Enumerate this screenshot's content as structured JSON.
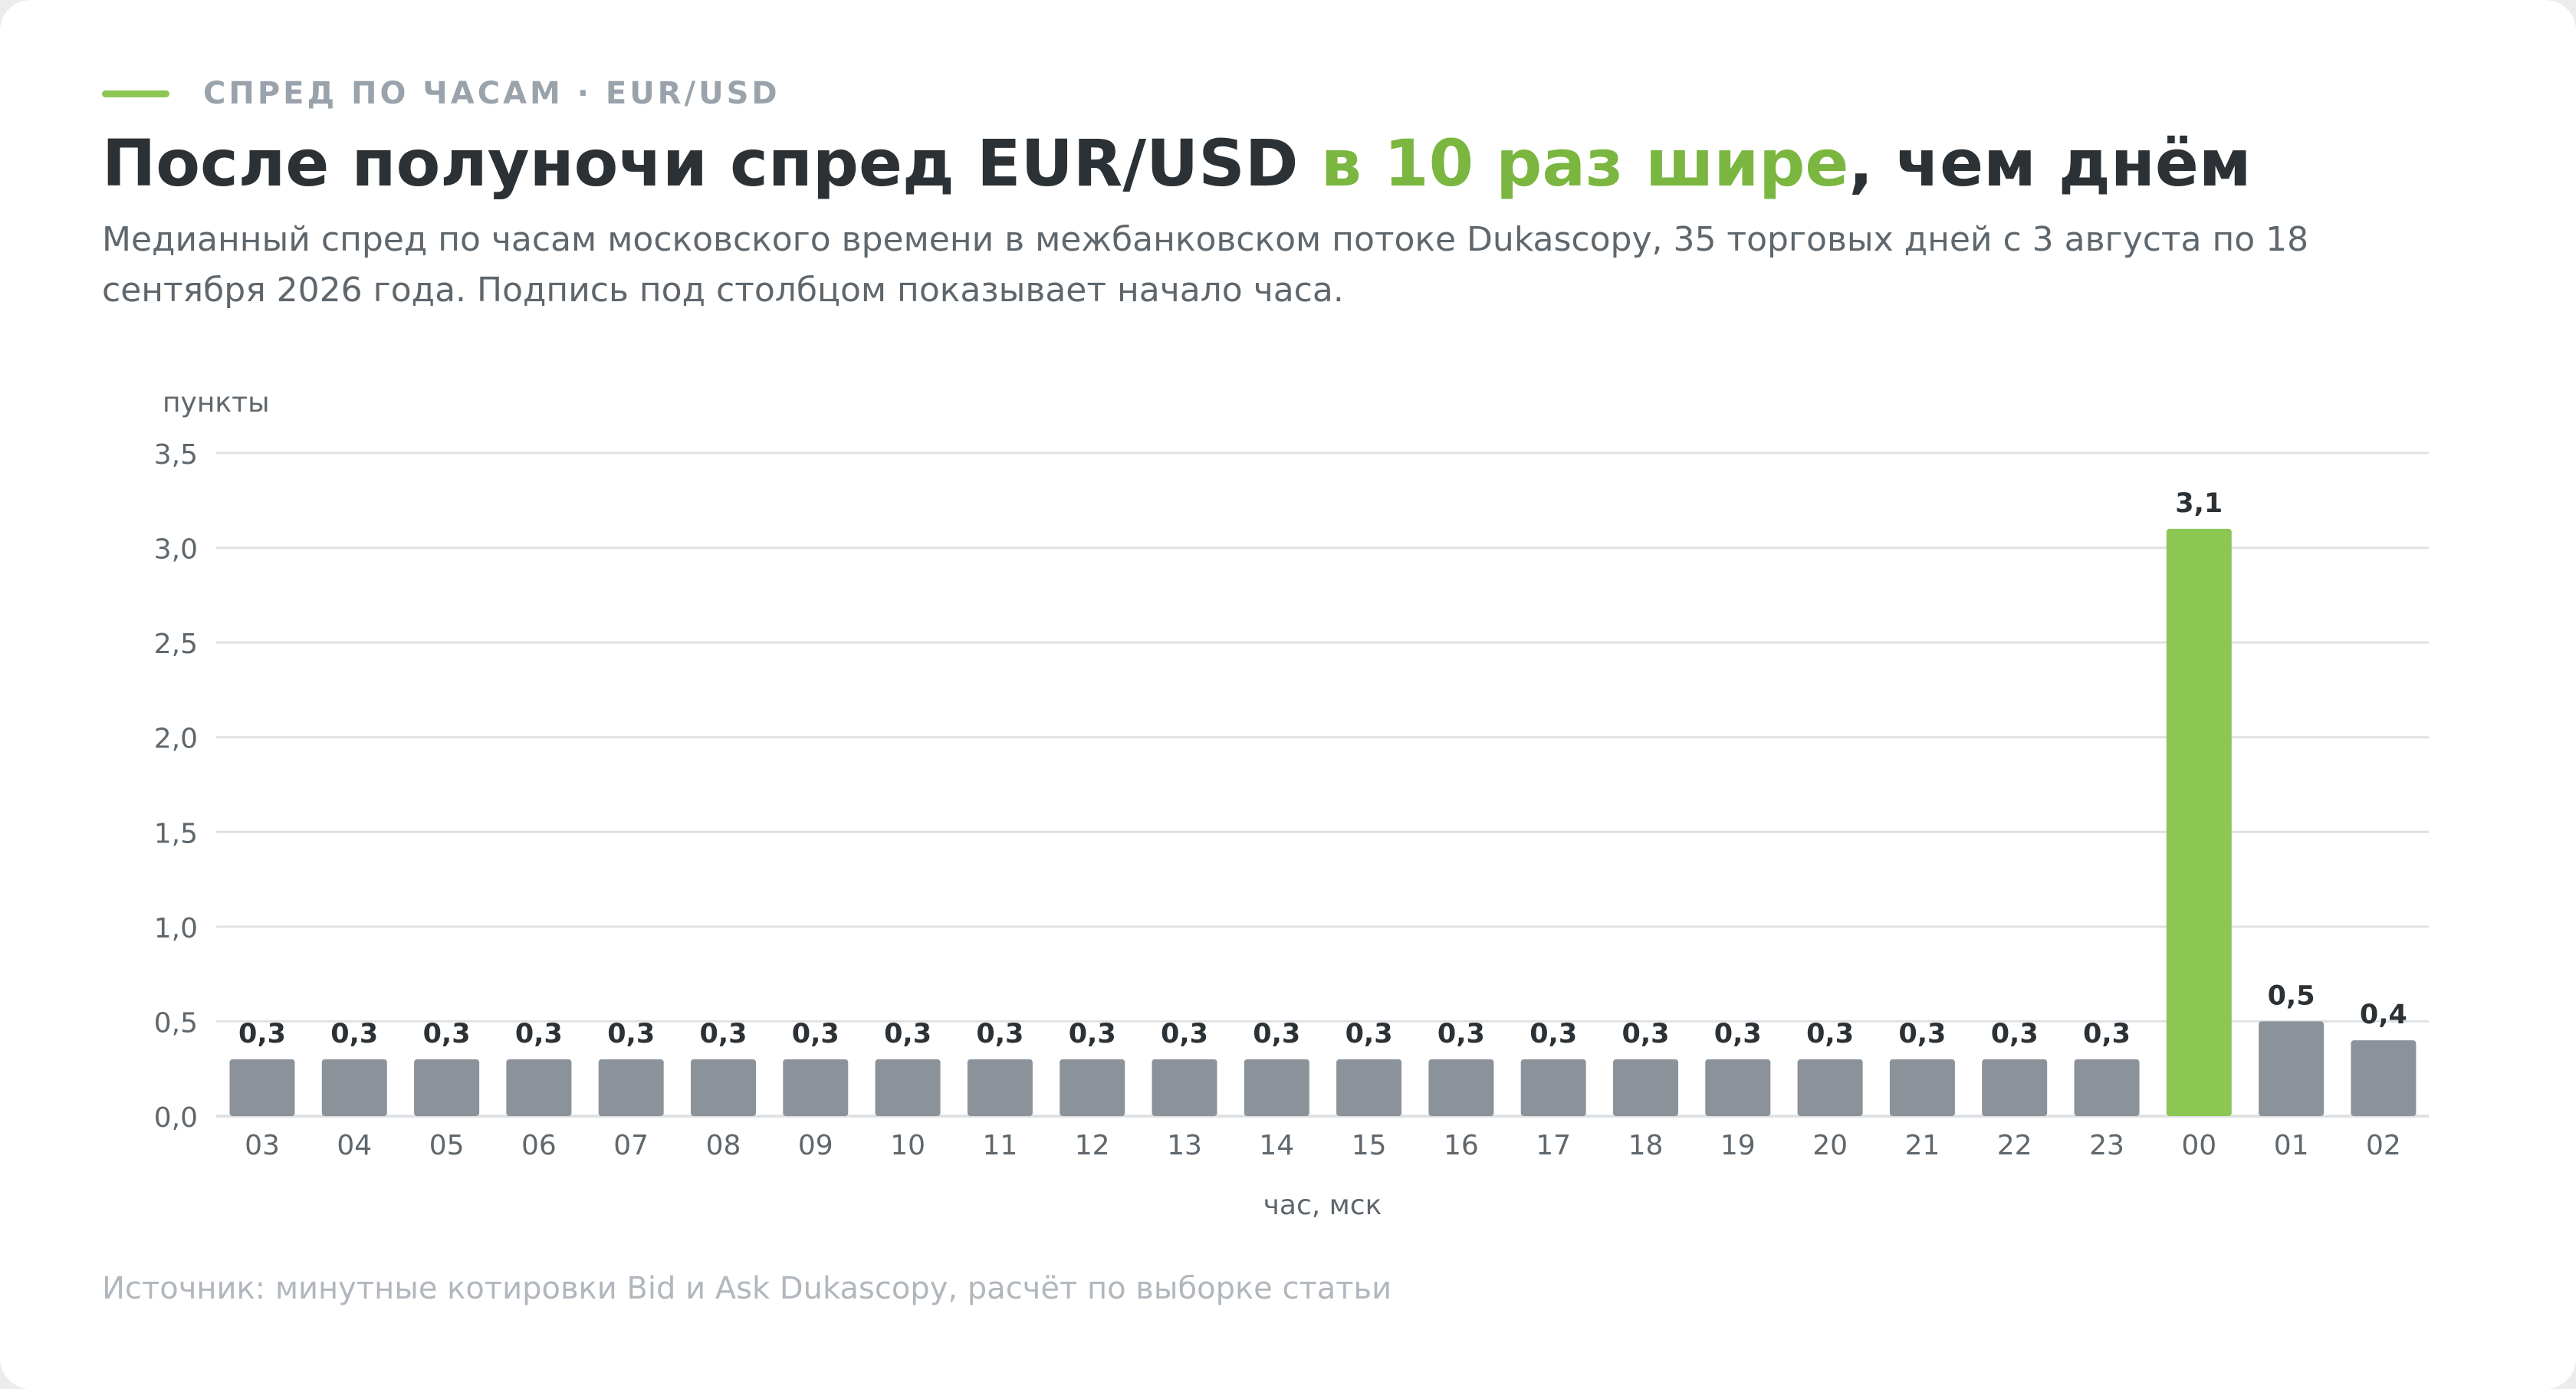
{
  "header": {
    "kicker": "СПРЕД ПО ЧАСАМ · EUR/USD",
    "title_part1": "После полуночи спред EUR/USD ",
    "title_accent": "в 10 раз шире",
    "title_part2": ", чем днём",
    "subtitle": "Медианный спред по часам московского времени в межбанковском потоке Dukascopy, 35 торговых дней с 3 августа по 18 сентября 2026 года. Подпись под столбцом показывает начало часа."
  },
  "colors": {
    "accent": "#8cc653",
    "accent_text": "#7ab640",
    "bar_default": "#8b9299",
    "grid": "#dfe2e5",
    "text_dark": "#2b3135",
    "text_muted": "#5f676d",
    "text_footer": "#b1b7bd"
  },
  "chart_data": {
    "type": "bar",
    "ylabel": "пункты",
    "xlabel": "час, мск",
    "ylim": [
      0,
      3.5
    ],
    "yticks": [
      "0,0",
      "0,5",
      "1,0",
      "1,5",
      "2,0",
      "2,5",
      "3,0",
      "3,5"
    ],
    "grid": true,
    "categories": [
      "03",
      "04",
      "05",
      "06",
      "07",
      "08",
      "09",
      "10",
      "11",
      "12",
      "13",
      "14",
      "15",
      "16",
      "17",
      "18",
      "19",
      "20",
      "21",
      "22",
      "23",
      "00",
      "01",
      "02"
    ],
    "values": [
      0.3,
      0.3,
      0.3,
      0.3,
      0.3,
      0.3,
      0.3,
      0.3,
      0.3,
      0.3,
      0.3,
      0.3,
      0.3,
      0.3,
      0.3,
      0.3,
      0.3,
      0.3,
      0.3,
      0.3,
      0.3,
      3.1,
      0.5,
      0.4
    ],
    "value_labels": [
      "0,3",
      "0,3",
      "0,3",
      "0,3",
      "0,3",
      "0,3",
      "0,3",
      "0,3",
      "0,3",
      "0,3",
      "0,3",
      "0,3",
      "0,3",
      "0,3",
      "0,3",
      "0,3",
      "0,3",
      "0,3",
      "0,3",
      "0,3",
      "0,3",
      "3,1",
      "0,5",
      "0,4"
    ],
    "highlight_category": "00"
  },
  "footer": {
    "source": "Источник: минутные котировки Bid и Ask Dukascopy, расчёт по выборке статьи"
  }
}
